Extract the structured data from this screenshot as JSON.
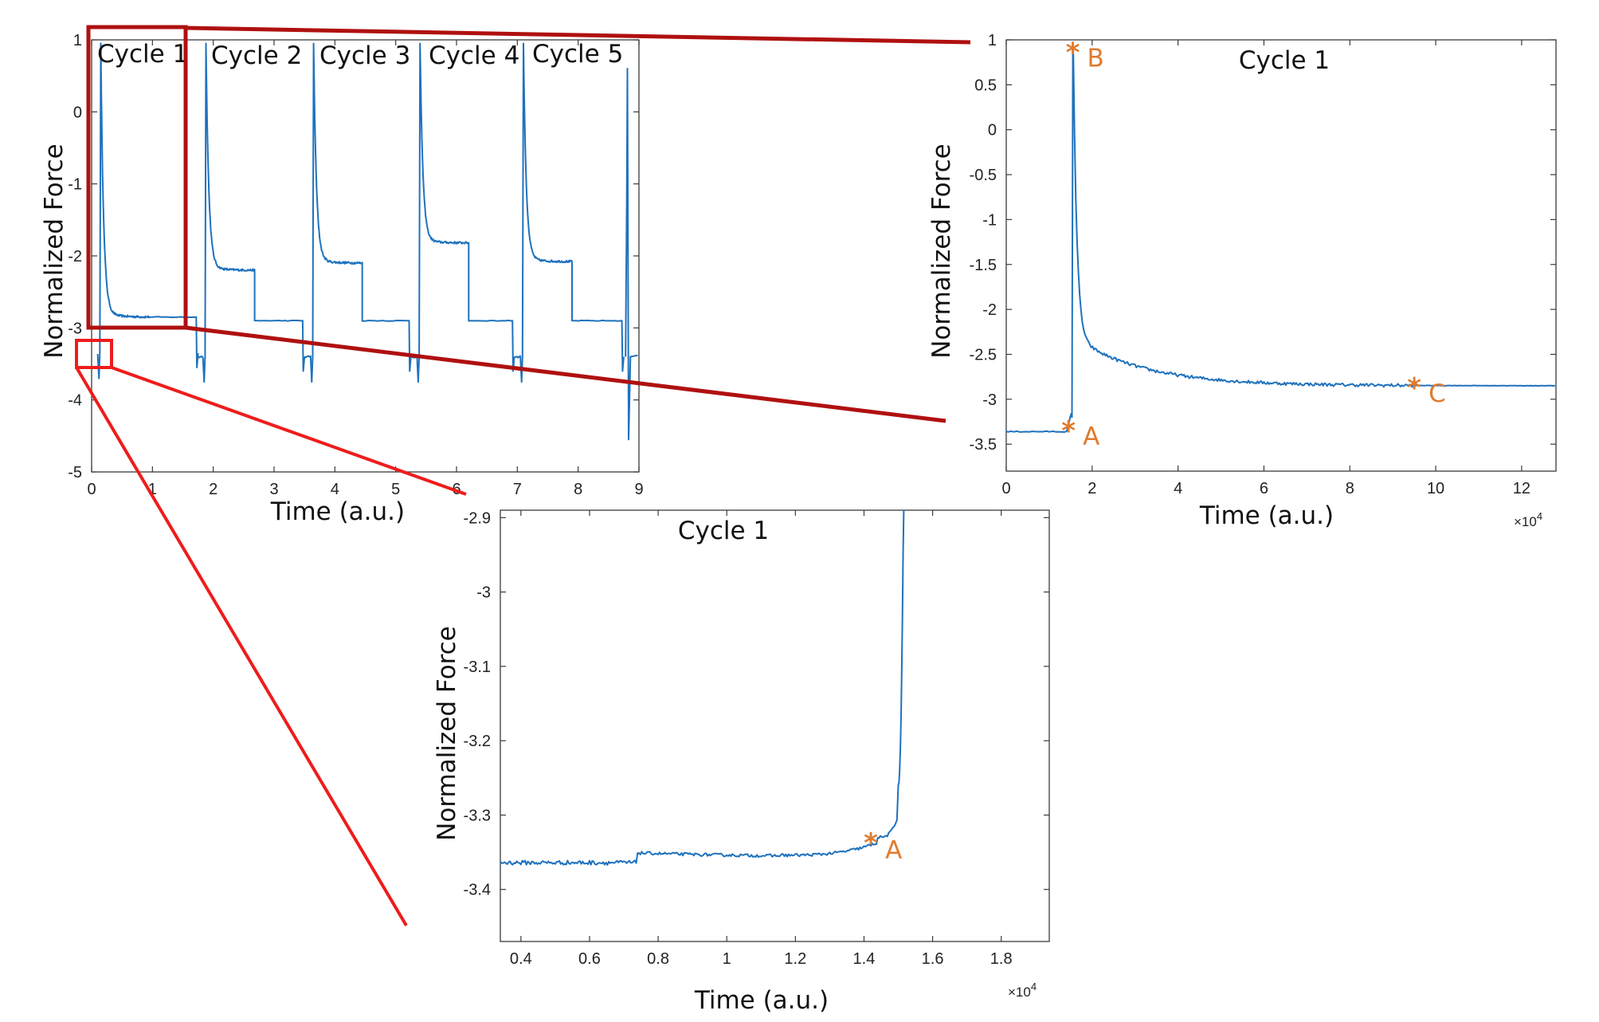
{
  "colors": {
    "line": "#1f72bd",
    "marker": "#E07B2E",
    "zoom_box_dark": "#b01010",
    "zoom_box_light": "#ee1c1c",
    "axis": "#3a3a3a"
  },
  "chart_data": [
    {
      "id": "overview",
      "type": "line",
      "xlabel": "Time (a.u.)",
      "ylabel": "Normalized Force",
      "xlim": [
        0,
        9
      ],
      "ylim": [
        -5,
        1
      ],
      "xticks": [
        "0",
        "1",
        "2",
        "3",
        "4",
        "5",
        "6",
        "7",
        "8",
        "9"
      ],
      "yticks": [
        "1",
        "0",
        "-1",
        "-2",
        "-3",
        "-4",
        "-5"
      ],
      "annotations": [
        "Cycle 1",
        "Cycle 2",
        "Cycle 3",
        "Cycle 4",
        "Cycle 5"
      ],
      "cycles": [
        {
          "start": 0.1,
          "peak_x": 0.15,
          "end": 1.75,
          "base": -3.35,
          "plateau": -2.85,
          "step": -2.85
        },
        {
          "start": 1.75,
          "peak_x": 1.88,
          "end": 3.5,
          "base": -3.4,
          "plateau": -2.2,
          "step": -2.9
        },
        {
          "start": 3.5,
          "peak_x": 3.65,
          "end": 5.25,
          "base": -3.4,
          "plateau": -2.1,
          "step": -2.9
        },
        {
          "start": 5.25,
          "peak_x": 5.4,
          "end": 6.95,
          "base": -3.4,
          "plateau": -1.82,
          "step": -2.9
        },
        {
          "start": 6.95,
          "peak_x": 7.1,
          "end": 8.75,
          "base": -3.4,
          "plateau": -2.08,
          "step": -2.9
        }
      ]
    },
    {
      "id": "cycle1",
      "type": "line",
      "title": "Cycle 1",
      "xlabel": "Time (a.u.)",
      "ylabel": "Normalized Force",
      "x_multiplier": "×10",
      "x_multiplier_exp": "4",
      "xlim": [
        0,
        12.8
      ],
      "ylim": [
        -3.8,
        1
      ],
      "xticks": [
        "0",
        "2",
        "4",
        "6",
        "8",
        "10",
        "12"
      ],
      "yticks": [
        "1",
        "0.5",
        "0",
        "-0.5",
        "-1",
        "-1.5",
        "-2",
        "-2.5",
        "-3",
        "-3.5"
      ],
      "markers": [
        {
          "label": "A",
          "x": 1.45,
          "y": -3.33
        },
        {
          "label": "B",
          "x": 1.55,
          "y": 0.88
        },
        {
          "label": "C",
          "x": 9.5,
          "y": -2.85
        }
      ]
    },
    {
      "id": "cycle1-zoom",
      "type": "line",
      "title": "Cycle 1",
      "xlabel": "Time (a.u.)",
      "ylabel": "Normalized Force",
      "x_multiplier": "×10",
      "x_multiplier_exp": "4",
      "xlim": [
        0.34,
        1.94
      ],
      "ylim": [
        -3.47,
        -2.89
      ],
      "xticks": [
        "0.4",
        "0.6",
        "0.8",
        "1",
        "1.2",
        "1.4",
        "1.6",
        "1.8"
      ],
      "yticks": [
        "-2.9",
        "-3",
        "-3.1",
        "-3.2",
        "-3.3",
        "-3.4"
      ],
      "markers": [
        {
          "label": "A",
          "x": 1.42,
          "y": -3.335
        }
      ]
    }
  ]
}
